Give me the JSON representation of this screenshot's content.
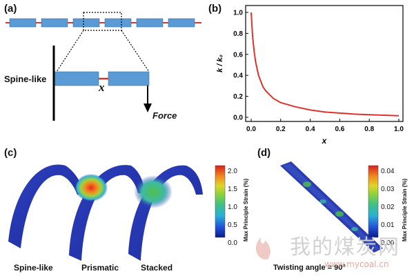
{
  "panels": {
    "a": {
      "label": "(a)",
      "spine_label": "Spine-like",
      "x_label": "x",
      "force_label": "Force"
    },
    "b": {
      "label": "(b)"
    },
    "c": {
      "label": "(c)",
      "captions": [
        "Spine-like",
        "Prismatic",
        "Stacked"
      ],
      "colorbar": {
        "ticks": [
          "2.0",
          "1.5",
          "1.0",
          "0.5",
          "0.0"
        ],
        "title": "Max Principle Strain (%)"
      }
    },
    "d": {
      "label": "(d)",
      "caption": "Twisting angle = 90°",
      "colorbar": {
        "ticks": [
          "0.04",
          "0.03",
          "0.02",
          "0.01",
          "0.00"
        ],
        "title": "Max Principle Strain (%)"
      }
    }
  },
  "watermark": {
    "text": "我的煤炭网",
    "url": "www.mycoal.cn"
  },
  "colors": {
    "block": "#5b9bd5",
    "connector": "#d9362a",
    "curve": "#e0312a"
  },
  "chart_data": {
    "type": "line",
    "xlabel": "x",
    "ylabel": "k / k₀",
    "xlim": [
      0.0,
      1.0
    ],
    "ylim": [
      0.0,
      1.0
    ],
    "xticks": [
      "0.0",
      "0.2",
      "0.4",
      "0.6",
      "0.8",
      "1.0"
    ],
    "yticks": [
      "0.0",
      "0.2",
      "0.4",
      "0.6",
      "0.8",
      "1.0"
    ],
    "grid": false,
    "series": [
      {
        "x": [
          0.0,
          0.01,
          0.02,
          0.03,
          0.05,
          0.08,
          0.1,
          0.15,
          0.2,
          0.3,
          0.4,
          0.5,
          0.6,
          0.7,
          0.8,
          0.9,
          1.0
        ],
        "y": [
          1.0,
          0.77,
          0.63,
          0.53,
          0.4,
          0.29,
          0.25,
          0.18,
          0.14,
          0.1,
          0.07,
          0.05,
          0.04,
          0.03,
          0.025,
          0.02,
          0.015
        ]
      }
    ]
  }
}
